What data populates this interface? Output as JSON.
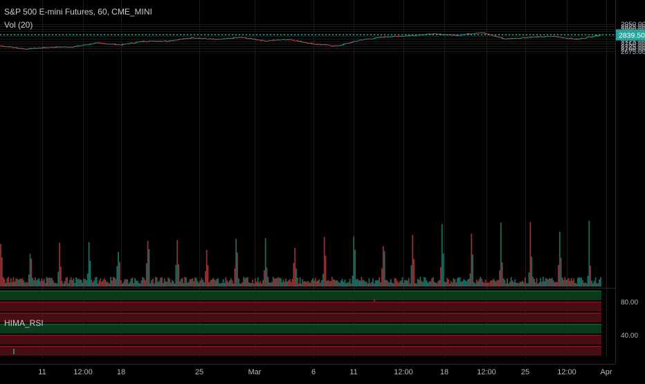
{
  "header": {
    "title": "S&P 500 E-mini Futures, 60, CME_MINI",
    "volume_indicator": "Vol (20)",
    "rsi_indicator": "HIMA_RSI"
  },
  "colors": {
    "background": "#000000",
    "grid": "#1c1c1c",
    "up": "#26a69a",
    "down": "#ef5350",
    "last_price": "#26a69a",
    "rsi_green": "#0c3a1c",
    "rsi_red": "#4a0d12"
  },
  "chart_data": [
    {
      "type": "candlestick",
      "title": "S&P 500 E-mini Futures, 60, CME_MINI",
      "y_ticks": [
        "2950.00",
        "2925.00",
        "2900.00",
        "2875.00",
        "2850.00",
        "2825.00",
        "2800.00",
        "2775.00",
        "2750.00",
        "2725.00",
        "2700.00",
        "2675.00"
      ],
      "ylim": [
        2662,
        2967
      ],
      "last_price": "2839.50",
      "x_ticks": [
        "11",
        "12:00",
        "18",
        "25",
        "Mar",
        "6",
        "11",
        "12:00",
        "18",
        "12:00",
        "25",
        "12:00",
        "Apr"
      ],
      "key_points": [
        {
          "x": "Feb 7",
          "close": 2730
        },
        {
          "x": "Feb 8",
          "close": 2698
        },
        {
          "x": "Feb 9",
          "close": 2715
        },
        {
          "x": "Feb 11",
          "close": 2720
        },
        {
          "x": "Feb 14",
          "close": 2758
        },
        {
          "x": "Feb 15",
          "close": 2740
        },
        {
          "x": "Feb 16",
          "close": 2778
        },
        {
          "x": "Feb 20",
          "close": 2780
        },
        {
          "x": "Feb 25",
          "close": 2812
        },
        {
          "x": "Feb 27",
          "close": 2793
        },
        {
          "x": "Mar 1",
          "close": 2815
        },
        {
          "x": "Mar 4",
          "close": 2780
        },
        {
          "x": "Mar 6",
          "close": 2795
        },
        {
          "x": "Mar 8",
          "close": 2750
        },
        {
          "x": "Mar 10",
          "close": 2728
        },
        {
          "x": "Mar 12",
          "close": 2790
        },
        {
          "x": "Mar 14",
          "close": 2820
        },
        {
          "x": "Mar 18",
          "close": 2832
        },
        {
          "x": "Mar 20",
          "close": 2850
        },
        {
          "x": "Mar 22",
          "close": 2835
        },
        {
          "x": "Mar 23",
          "close": 2865
        },
        {
          "x": "Mar 24",
          "close": 2800
        },
        {
          "x": "Mar 26",
          "close": 2815
        },
        {
          "x": "Mar 27",
          "close": 2825
        },
        {
          "x": "Mar 28",
          "close": 2795
        },
        {
          "x": "Mar 29",
          "close": 2839.5
        }
      ]
    },
    {
      "type": "bar",
      "title": "Vol (20)",
      "note": "volume histogram, green/red by candle direction; no axis values printed"
    },
    {
      "type": "table",
      "title": "HIMA_RSI",
      "y_ticks": [
        "80.00",
        "40.00"
      ],
      "bands": [
        "green",
        "red",
        "red",
        "green",
        "red",
        "red"
      ]
    }
  ]
}
